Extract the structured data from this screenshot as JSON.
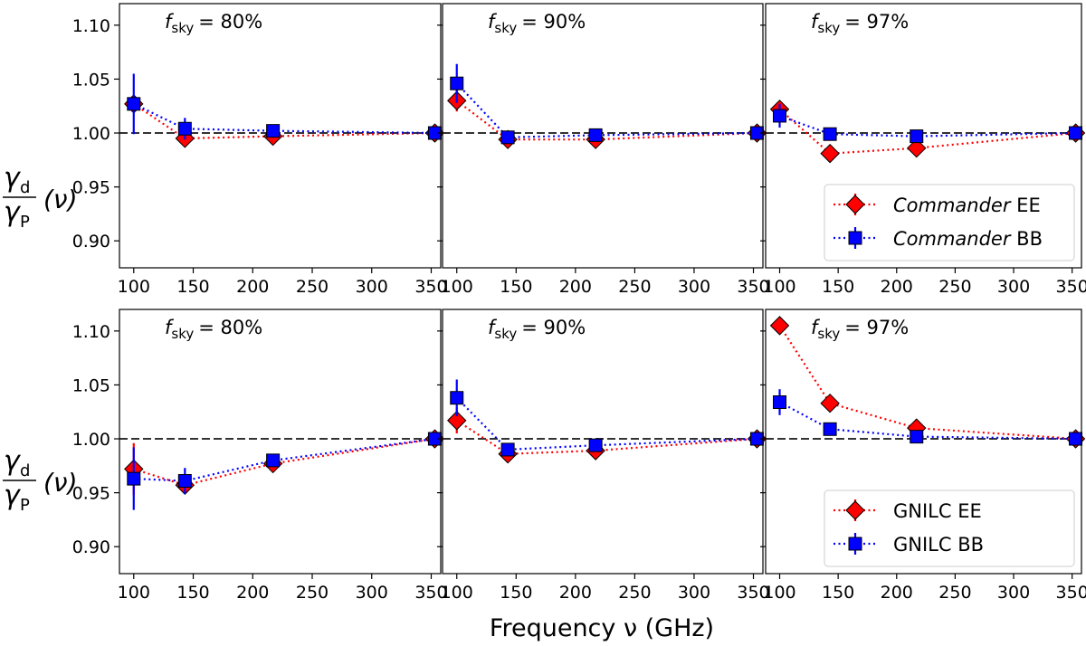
{
  "figure": {
    "xlabel": "Frequency ν (GHz)",
    "ylabel_num": "γ",
    "ylabel_num_sub": "d",
    "ylabel_den": "γ",
    "ylabel_den_sub": "P",
    "ylabel_tail": "(ν)"
  },
  "chart_data": [
    {
      "type": "scatter",
      "row": "top",
      "annotation": "f",
      "annotation_sub": "sky",
      "annotation_value": "= 80%",
      "xlim": [
        88,
        358
      ],
      "ylim": [
        0.875,
        1.12
      ],
      "xticks": [
        100,
        150,
        200,
        250,
        300,
        350
      ],
      "yticks": [
        0.9,
        0.95,
        1.0,
        1.05,
        1.1
      ],
      "reference_line": 1.0,
      "series": [
        {
          "name": "Commander EE",
          "marker": "diamond",
          "color": "#ff0000",
          "x": [
            100,
            143,
            217,
            353
          ],
          "y": [
            1.027,
            0.995,
            0.997,
            1.0
          ],
          "err": [
            0.006,
            0.007,
            0.003,
            0.001
          ]
        },
        {
          "name": "Commander BB",
          "marker": "square",
          "color": "#0000ff",
          "x": [
            100,
            143,
            217,
            353
          ],
          "y": [
            1.027,
            1.004,
            1.002,
            1.0
          ],
          "err": [
            0.028,
            0.01,
            0.005,
            0.002
          ]
        }
      ]
    },
    {
      "type": "scatter",
      "row": "top",
      "annotation": "f",
      "annotation_sub": "sky",
      "annotation_value": "= 90%",
      "xlim": [
        88,
        358
      ],
      "ylim": [
        0.875,
        1.12
      ],
      "xticks": [
        100,
        150,
        200,
        250,
        300,
        350
      ],
      "yticks": [
        0.9,
        0.95,
        1.0,
        1.05,
        1.1
      ],
      "reference_line": 1.0,
      "series": [
        {
          "name": "Commander EE",
          "marker": "diamond",
          "color": "#ff0000",
          "x": [
            100,
            143,
            217,
            353
          ],
          "y": [
            1.03,
            0.994,
            0.994,
            1.0
          ],
          "err": [
            0.01,
            0.005,
            0.003,
            0.001
          ]
        },
        {
          "name": "Commander BB",
          "marker": "square",
          "color": "#0000ff",
          "x": [
            100,
            143,
            217,
            353
          ],
          "y": [
            1.046,
            0.996,
            0.998,
            1.0
          ],
          "err": [
            0.018,
            0.006,
            0.003,
            0.002
          ]
        }
      ]
    },
    {
      "type": "scatter",
      "row": "top",
      "annotation": "f",
      "annotation_sub": "sky",
      "annotation_value": "= 97%",
      "xlim": [
        88,
        358
      ],
      "ylim": [
        0.875,
        1.12
      ],
      "xticks": [
        100,
        150,
        200,
        250,
        300,
        350
      ],
      "yticks": [
        0.9,
        0.95,
        1.0,
        1.05,
        1.1
      ],
      "reference_line": 1.0,
      "legend": "bottom-right",
      "series": [
        {
          "name": "Commander EE",
          "label_italic": "Commander",
          "label_rest": " EE",
          "marker": "diamond",
          "color": "#ff0000",
          "x": [
            100,
            143,
            217,
            353
          ],
          "y": [
            1.022,
            0.981,
            0.986,
            1.0
          ],
          "err": [
            0.005,
            0.003,
            0.002,
            0.001
          ]
        },
        {
          "name": "Commander BB",
          "label_italic": "Commander",
          "label_rest": " BB",
          "marker": "square",
          "color": "#0000ff",
          "x": [
            100,
            143,
            217,
            353
          ],
          "y": [
            1.016,
            0.999,
            0.997,
            1.0
          ],
          "err": [
            0.011,
            0.004,
            0.002,
            0.001
          ]
        }
      ]
    },
    {
      "type": "scatter",
      "row": "bottom",
      "annotation": "f",
      "annotation_sub": "sky",
      "annotation_value": "= 80%",
      "xlim": [
        88,
        358
      ],
      "ylim": [
        0.875,
        1.12
      ],
      "xticks": [
        100,
        150,
        200,
        250,
        300,
        350
      ],
      "yticks": [
        0.9,
        0.95,
        1.0,
        1.05,
        1.1
      ],
      "reference_line": 1.0,
      "series": [
        {
          "name": "GNILC EE",
          "marker": "diamond",
          "color": "#ff0000",
          "x": [
            100,
            143,
            217,
            353
          ],
          "y": [
            0.972,
            0.957,
            0.977,
            1.0
          ],
          "err": [
            0.024,
            0.007,
            0.004,
            0.001
          ]
        },
        {
          "name": "GNILC BB",
          "marker": "square",
          "color": "#0000ff",
          "x": [
            100,
            143,
            217,
            353
          ],
          "y": [
            0.963,
            0.961,
            0.98,
            1.0
          ],
          "err": [
            0.029,
            0.012,
            0.006,
            0.002
          ]
        }
      ]
    },
    {
      "type": "scatter",
      "row": "bottom",
      "annotation": "f",
      "annotation_sub": "sky",
      "annotation_value": "= 90%",
      "xlim": [
        88,
        358
      ],
      "ylim": [
        0.875,
        1.12
      ],
      "xticks": [
        100,
        150,
        200,
        250,
        300,
        350
      ],
      "yticks": [
        0.9,
        0.95,
        1.0,
        1.05,
        1.1
      ],
      "reference_line": 1.0,
      "series": [
        {
          "name": "GNILC EE",
          "marker": "diamond",
          "color": "#ff0000",
          "x": [
            100,
            143,
            217,
            353
          ],
          "y": [
            1.017,
            0.986,
            0.989,
            1.0
          ],
          "err": [
            0.012,
            0.004,
            0.003,
            0.001
          ]
        },
        {
          "name": "GNILC BB",
          "marker": "square",
          "color": "#0000ff",
          "x": [
            100,
            143,
            217,
            353
          ],
          "y": [
            1.038,
            0.99,
            0.994,
            1.0
          ],
          "err": [
            0.017,
            0.006,
            0.003,
            0.002
          ]
        }
      ]
    },
    {
      "type": "scatter",
      "row": "bottom",
      "annotation": "f",
      "annotation_sub": "sky",
      "annotation_value": "= 97%",
      "xlim": [
        88,
        358
      ],
      "ylim": [
        0.875,
        1.12
      ],
      "xticks": [
        100,
        150,
        200,
        250,
        300,
        350
      ],
      "yticks": [
        0.9,
        0.95,
        1.0,
        1.05,
        1.1
      ],
      "reference_line": 1.0,
      "legend": "bottom-right",
      "series": [
        {
          "name": "GNILC EE",
          "label_italic": "",
          "label_rest": "GNILC EE",
          "marker": "diamond",
          "color": "#ff0000",
          "x": [
            100,
            143,
            217,
            353
          ],
          "y": [
            1.105,
            1.033,
            1.01,
            1.0
          ],
          "err": [
            0.005,
            0.004,
            0.003,
            0.001
          ]
        },
        {
          "name": "GNILC BB",
          "label_italic": "",
          "label_rest": "GNILC BB",
          "marker": "square",
          "color": "#0000ff",
          "x": [
            100,
            143,
            217,
            353
          ],
          "y": [
            1.034,
            1.009,
            1.002,
            1.0
          ],
          "err": [
            0.012,
            0.004,
            0.002,
            0.001
          ]
        }
      ]
    }
  ]
}
